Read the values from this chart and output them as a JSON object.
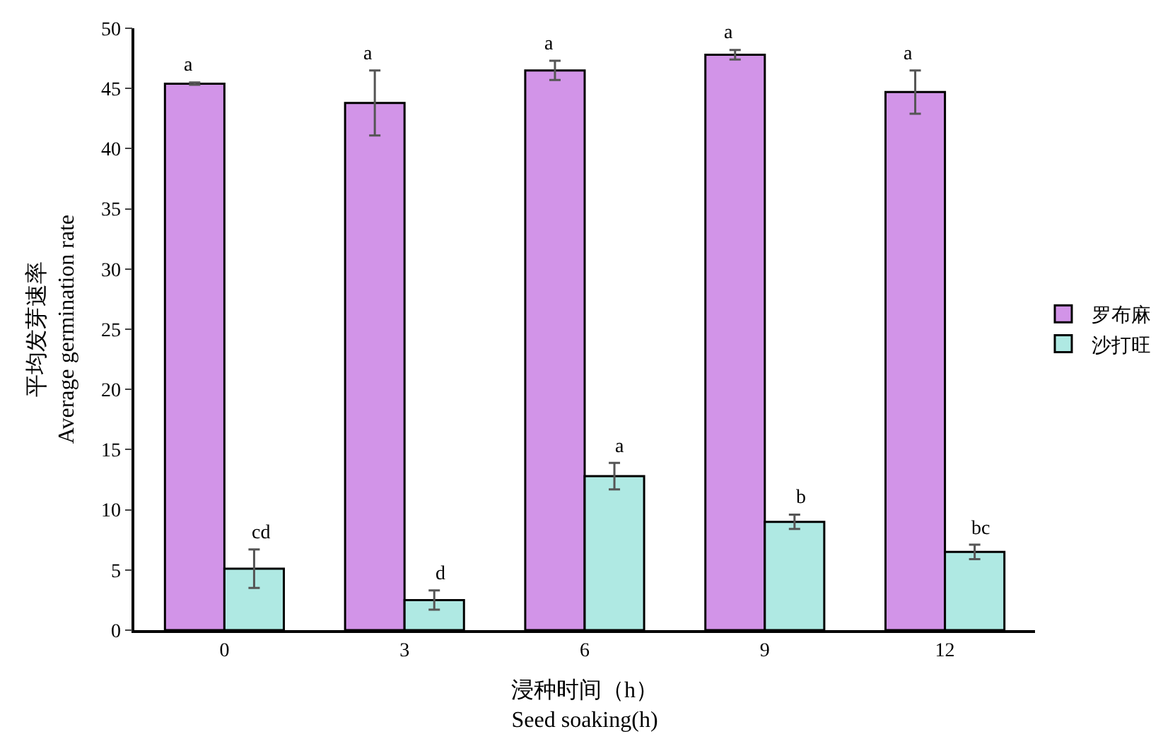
{
  "chart_data": {
    "type": "bar",
    "xlabel": "浸种时间（h）\nSeed soaking(h)",
    "ylabel": "平均发芽速率\nAverage germination rate",
    "categories": [
      "0",
      "3",
      "6",
      "9",
      "12"
    ],
    "series": [
      {
        "name": "罗布麻",
        "color": "#d294e8",
        "values": [
          45.4,
          43.8,
          46.5,
          47.8,
          44.7
        ],
        "errors": [
          0.1,
          2.7,
          0.8,
          0.4,
          1.8
        ],
        "value_labels": [
          "a",
          "a",
          "a",
          "a",
          "a"
        ]
      },
      {
        "name": "沙打旺",
        "color": "#afe9e3",
        "values": [
          5.1,
          2.5,
          12.8,
          9.0,
          6.5
        ],
        "errors": [
          1.6,
          0.8,
          1.1,
          0.6,
          0.6
        ],
        "value_labels": [
          "cd",
          "d",
          "a",
          "b",
          "bc"
        ]
      }
    ],
    "ylim": [
      0,
      50
    ],
    "yticks": [
      0,
      5,
      10,
      15,
      20,
      25,
      30,
      35,
      40,
      45,
      50
    ],
    "legend": "right"
  }
}
